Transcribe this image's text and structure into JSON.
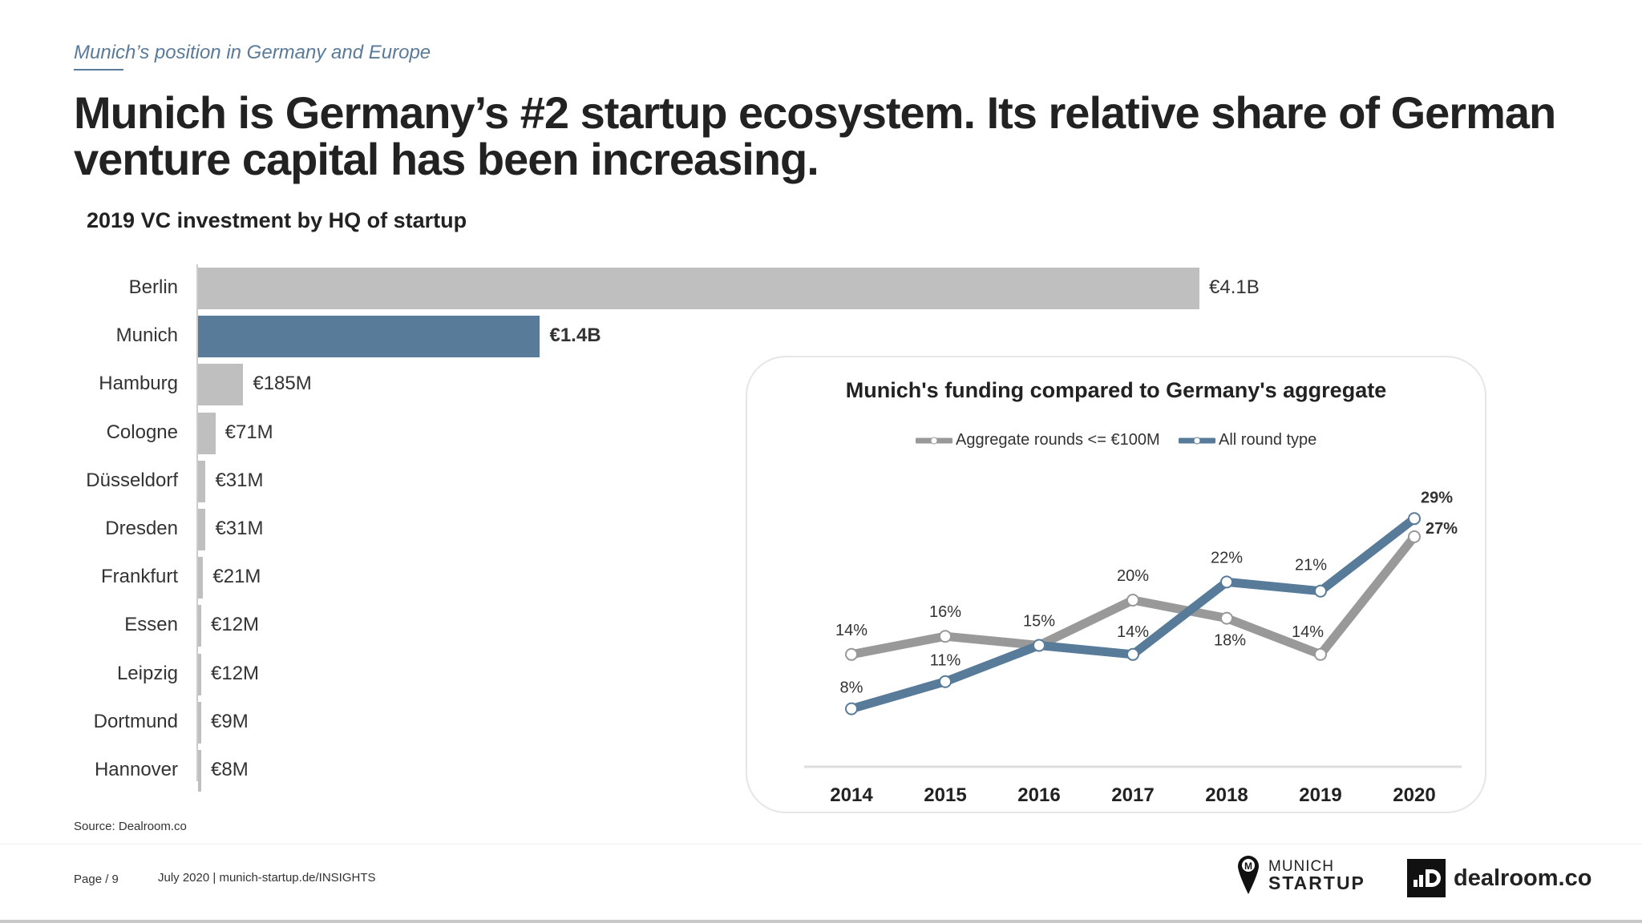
{
  "header": {
    "kicker": "Munich’s position in Germany and Europe",
    "title": "Munich is Germany’s #2 startup ecosystem. Its relative share of German venture capital has been increasing."
  },
  "chart_data": [
    {
      "type": "bar",
      "orientation": "horizontal",
      "title": "2019 VC investment by HQ of startup",
      "unit": "€M",
      "categories": [
        "Berlin",
        "Munich",
        "Hamburg",
        "Cologne",
        "Düsseldorf",
        "Dresden",
        "Frankfurt",
        "Essen",
        "Leipzig",
        "Dortmund",
        "Hannover"
      ],
      "values": [
        4100,
        1400,
        185,
        71,
        31,
        31,
        21,
        12,
        12,
        9,
        8
      ],
      "labels": [
        "€4.1B",
        "€1.4B",
        "€185M",
        "€71M",
        "€31M",
        "€31M",
        "€21M",
        "€12M",
        "€12M",
        "€9M",
        "€8M"
      ],
      "highlight": "Munich",
      "colors": {
        "default": "#bfbfbf",
        "highlight": "#587b99"
      }
    },
    {
      "type": "line",
      "title": "Munich's funding compared to Germany's aggregate",
      "x": [
        "2014",
        "2015",
        "2016",
        "2017",
        "2018",
        "2019",
        "2020"
      ],
      "series": [
        {
          "name": "Aggregate rounds <= €100M",
          "values": [
            14,
            16,
            15,
            20,
            18,
            14,
            27
          ],
          "labels": [
            "14%",
            "16%",
            "",
            "20%",
            "18%",
            "14%",
            "27%"
          ],
          "color": "#999999"
        },
        {
          "name": "All round type",
          "values": [
            8,
            11,
            15,
            14,
            22,
            21,
            29
          ],
          "labels": [
            "8%",
            "11%",
            "15%",
            "14%",
            "22%",
            "21%",
            "29%"
          ],
          "color": "#587b99"
        }
      ],
      "legend": "top",
      "grid": false
    }
  ],
  "footer": {
    "source": "Source: Dealroom.co",
    "page": "Page / 9",
    "date": "July 2020 | munich-startup.de/INSIGHTS",
    "logo1_top": "MUNICH",
    "logo1_bottom": "STARTUP",
    "logo2": "dealroom.co"
  }
}
